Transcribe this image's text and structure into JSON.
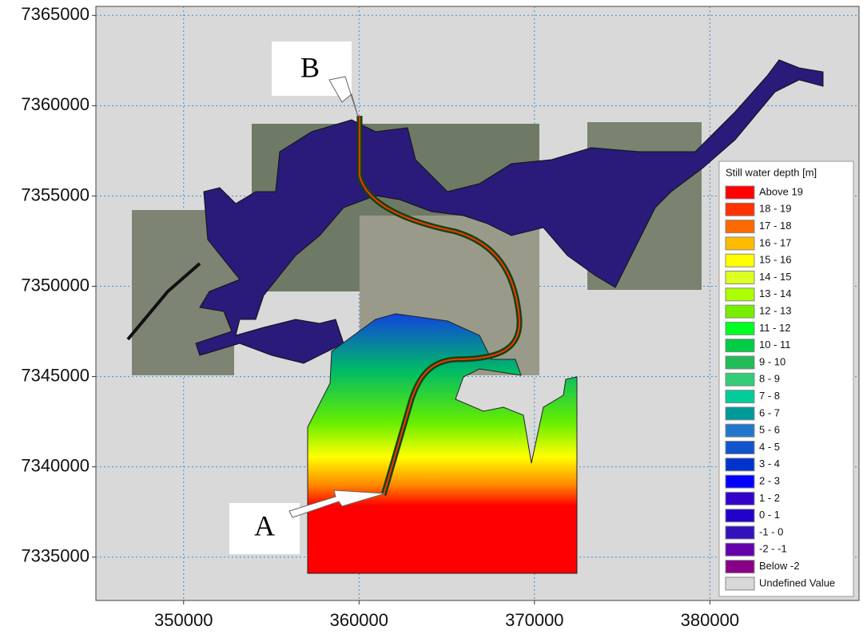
{
  "map": {
    "xlim": [
      345000,
      388500
    ],
    "ylim": [
      7332600,
      7365500
    ],
    "xticks": [
      350000,
      360000,
      370000,
      380000
    ],
    "yticks": [
      7335000,
      7340000,
      7345000,
      7350000,
      7355000,
      7360000,
      7365000
    ],
    "labels": {
      "a": "A",
      "b": "B"
    },
    "legend": {
      "title": "Still water depth [m]",
      "items": [
        {
          "label": "Above 19",
          "color": "#ff0000"
        },
        {
          "label": "18 - 19",
          "color": "#ff3300"
        },
        {
          "label": "17 - 18",
          "color": "#ff6a00"
        },
        {
          "label": "16 - 17",
          "color": "#ffbb00"
        },
        {
          "label": "15 - 16",
          "color": "#ffff00"
        },
        {
          "label": "14 - 15",
          "color": "#ddff22"
        },
        {
          "label": "13 - 14",
          "color": "#aaff00"
        },
        {
          "label": "12 - 13",
          "color": "#77ee00"
        },
        {
          "label": "11 - 12",
          "color": "#00ff22"
        },
        {
          "label": "10 - 11",
          "color": "#00cc44"
        },
        {
          "label": "9 - 10",
          "color": "#22bb55"
        },
        {
          "label": "8 - 9",
          "color": "#33cc77"
        },
        {
          "label": "7 - 8",
          "color": "#00cc99"
        },
        {
          "label": "6 - 7",
          "color": "#009999"
        },
        {
          "label": "5 - 6",
          "color": "#2277cc"
        },
        {
          "label": "4 - 5",
          "color": "#1155cc"
        },
        {
          "label": "3 - 4",
          "color": "#0033cc"
        },
        {
          "label": "2 - 3",
          "color": "#0000ff"
        },
        {
          "label": "1 - 2",
          "color": "#3300cc"
        },
        {
          "label": "0 - 1",
          "color": "#2200cc"
        },
        {
          "label": "-1 - 0",
          "color": "#3311bb"
        },
        {
          "label": "-2 - -1",
          "color": "#6600aa"
        },
        {
          "label": "Below -2",
          "color": "#880088"
        },
        {
          "label": "Undefined Value",
          "color": "#d8d8d8"
        }
      ]
    }
  }
}
